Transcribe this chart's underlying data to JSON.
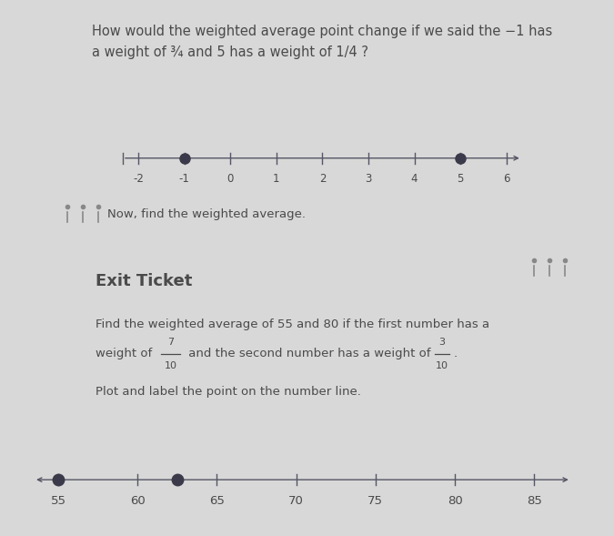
{
  "bg_color": "#d8d8d8",
  "title_line1": "How would the weighted average point change if we said the −1 has",
  "title_line2": "a weight of ¾ and 5 has a weight of 1/4 ?",
  "title_fontsize": 10.5,
  "title_color": "#4a4a4a",
  "numberline1": {
    "ticks": [
      -2,
      -1,
      0,
      1,
      2,
      3,
      4,
      5,
      6
    ],
    "points": [
      -1,
      5
    ]
  },
  "now_text": "Now, find the weighted average.",
  "now_fontsize": 9.5,
  "exit_ticket_title": "Exit Ticket",
  "exit_ticket_fontsize": 13,
  "exit_body_line1": "Find the weighted average of 55 and 80 if the first number has a",
  "exit_body_mid": "weight of ",
  "exit_body_frac1_num": "7",
  "exit_body_frac1_den": "10",
  "exit_body_mid2": " and the second number has a weight of ",
  "exit_body_frac2_num": "3",
  "exit_body_frac2_den": "10",
  "exit_body_line3": "Plot and label the point on the number line.",
  "exit_fontsize": 9.5,
  "numberline2": {
    "ticks": [
      55,
      60,
      65,
      70,
      75,
      80,
      85
    ],
    "points": [
      55,
      62.5
    ]
  },
  "dot_color": "#3a3a4a",
  "line_color": "#555566",
  "text_color": "#4a4a4a"
}
